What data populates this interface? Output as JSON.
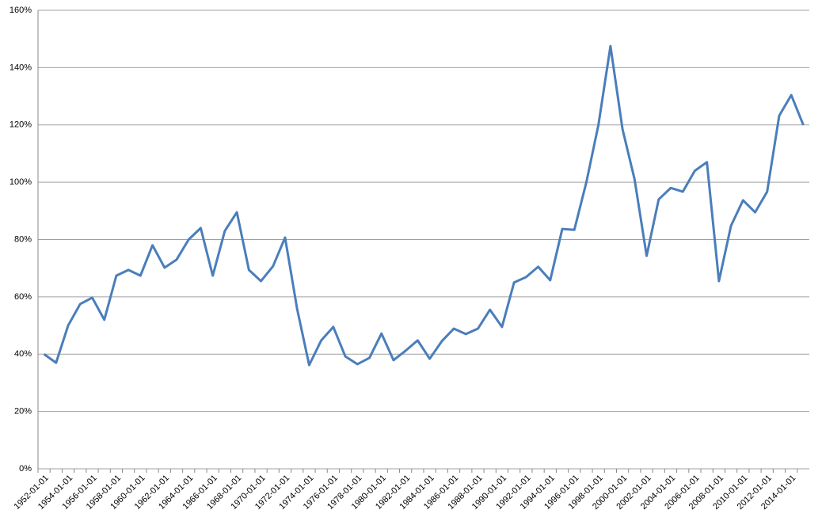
{
  "chart_data": {
    "type": "line",
    "categories": [
      "1952-01-01",
      null,
      "1954-01-01",
      null,
      "1956-01-01",
      null,
      "1958-01-01",
      null,
      "1960-01-01",
      null,
      "1962-01-01",
      null,
      "1964-01-01",
      null,
      "1966-01-01",
      null,
      "1968-01-01",
      null,
      "1970-01-01",
      null,
      "1972-01-01",
      null,
      "1974-01-01",
      null,
      "1976-01-01",
      null,
      "1978-01-01",
      null,
      "1980-01-01",
      null,
      "1982-01-01",
      null,
      "1984-01-01",
      null,
      "1986-01-01",
      null,
      "1988-01-01",
      null,
      "1990-01-01",
      null,
      "1992-01-01",
      null,
      "1994-01-01",
      null,
      "1996-01-01",
      null,
      "1998-01-01",
      null,
      "2000-01-01",
      null,
      "2002-01-01",
      null,
      "2004-01-01",
      null,
      "2006-01-01",
      null,
      "2008-01-01",
      null,
      "2010-01-01",
      null,
      "2012-01-01",
      null,
      "2014-01-01",
      null
    ],
    "values": [
      40,
      37,
      50,
      57.5,
      59.7,
      52,
      67.4,
      69.4,
      67.4,
      78,
      70.2,
      73,
      80,
      84,
      67.4,
      83,
      89.5,
      69.4,
      65.5,
      70.7,
      80.7,
      55.8,
      36.2,
      44.8,
      49.5,
      39.2,
      36.5,
      38.7,
      47.2,
      37.9,
      41.2,
      44.8,
      38.4,
      44.5,
      48.9,
      47,
      48.9,
      55.5,
      49.5,
      65,
      66.9,
      70.5,
      65.8,
      83.7,
      83.4,
      100,
      120,
      147.5,
      118.5,
      101,
      74.3,
      94,
      98,
      96.7,
      104,
      107,
      65.5,
      84.8,
      93.7,
      89.5,
      96.7,
      123.2,
      130.4,
      120
    ],
    "color": "#4a7ebb",
    "ylim": [
      0,
      160
    ],
    "yticks": [
      {
        "value": 0,
        "label": "0%"
      },
      {
        "value": 20,
        "label": "20%"
      },
      {
        "value": 40,
        "label": "40%"
      },
      {
        "value": 60,
        "label": "60%"
      },
      {
        "value": 80,
        "label": "80%"
      },
      {
        "value": 100,
        "label": "100%"
      },
      {
        "value": 120,
        "label": "120%"
      },
      {
        "value": 140,
        "label": "140%"
      },
      {
        "value": 160,
        "label": "160%"
      }
    ],
    "grid": true
  }
}
